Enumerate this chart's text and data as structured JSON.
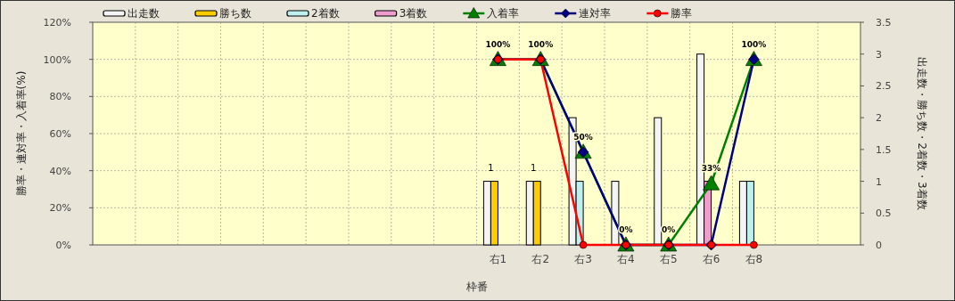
{
  "chart_data": {
    "type": "bar",
    "xlabel": "枠番",
    "ylabel": "勝率・連対率・入着率(%)",
    "y2label": "出走数・勝ち数・2着数・3着数",
    "categories": [
      null,
      null,
      null,
      null,
      null,
      null,
      null,
      null,
      null,
      "右1",
      "右2",
      "右3",
      "右4",
      "右5",
      "右6",
      "右8",
      null,
      null
    ],
    "series": [
      {
        "name": "出走数",
        "color": "#f4f4f4",
        "axis": "y2",
        "values": [
          null,
          null,
          null,
          null,
          null,
          null,
          null,
          null,
          null,
          1,
          1,
          2,
          1,
          2,
          3,
          1,
          null,
          null
        ]
      },
      {
        "name": "勝ち数",
        "color": "#ffcc00",
        "axis": "y2",
        "values": [
          null,
          null,
          null,
          null,
          null,
          null,
          null,
          null,
          null,
          1,
          1,
          0,
          0,
          0,
          0,
          0,
          null,
          null
        ],
        "value_labels": [
          null,
          null,
          null,
          null,
          null,
          null,
          null,
          null,
          null,
          "1",
          "1",
          null,
          null,
          null,
          null,
          null,
          null,
          null
        ]
      },
      {
        "name": "2着数",
        "color": "#bff0f0",
        "axis": "y2",
        "values": [
          null,
          null,
          null,
          null,
          null,
          null,
          null,
          null,
          null,
          0,
          0,
          1,
          0,
          0,
          0,
          1,
          null,
          null
        ]
      },
      {
        "name": "3着数",
        "color": "#f09ccc",
        "axis": "y2",
        "values": [
          null,
          null,
          null,
          null,
          null,
          null,
          null,
          null,
          null,
          0,
          0,
          0,
          0,
          0,
          1,
          0,
          null,
          null
        ]
      },
      {
        "name": "入着率",
        "type": "line",
        "color": "#008000",
        "marker": "triangle",
        "values": [
          null,
          null,
          null,
          null,
          null,
          null,
          null,
          null,
          null,
          100,
          100,
          50,
          0,
          0,
          33,
          100,
          null,
          null
        ],
        "value_labels": [
          null,
          null,
          null,
          null,
          null,
          null,
          null,
          null,
          null,
          "100%",
          "100%",
          "50%",
          "0%",
          "0%",
          "33%",
          "100%",
          null,
          null
        ]
      },
      {
        "name": "連対率",
        "type": "line",
        "color": "#000080",
        "marker": "diamond",
        "values": [
          null,
          null,
          null,
          null,
          null,
          null,
          null,
          null,
          null,
          100,
          100,
          50,
          0,
          0,
          0,
          100,
          null,
          null
        ]
      },
      {
        "name": "勝率",
        "type": "line",
        "color": "#ff0000",
        "marker": "circle",
        "values": [
          null,
          null,
          null,
          null,
          null,
          null,
          null,
          null,
          null,
          100,
          100,
          0,
          0,
          0,
          0,
          0,
          null,
          null
        ]
      }
    ],
    "ylim": [
      0,
      120
    ],
    "yticks": [
      {
        "value": 0,
        "label": "0%"
      },
      {
        "value": 20,
        "label": "20%"
      },
      {
        "value": 40,
        "label": "40%"
      },
      {
        "value": 60,
        "label": "60%"
      },
      {
        "value": 80,
        "label": "80%"
      },
      {
        "value": 100,
        "label": "100%"
      },
      {
        "value": 120,
        "label": "120%"
      }
    ],
    "y2lim": [
      0,
      3.5
    ],
    "y2ticks": [
      0,
      0.5,
      1,
      1.5,
      2,
      2.5,
      3,
      3.5
    ],
    "grid": true,
    "legend": "top"
  }
}
